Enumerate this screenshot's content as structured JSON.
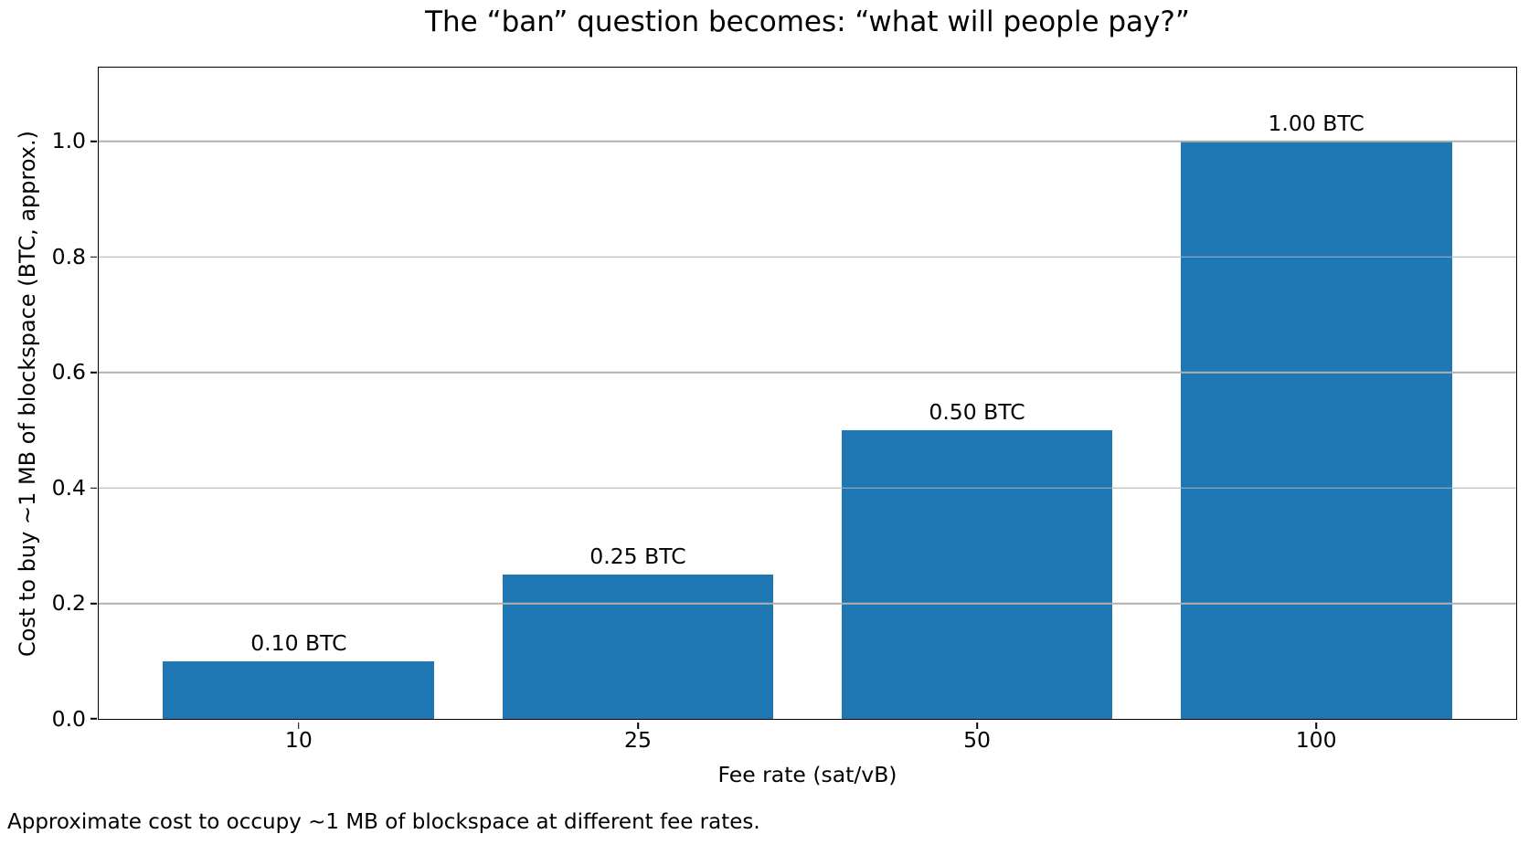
{
  "chart_data": {
    "type": "bar",
    "title": "The “ban” question becomes: “what will people pay?”",
    "categories": [
      "10",
      "25",
      "50",
      "100"
    ],
    "values": [
      0.1,
      0.25,
      0.5,
      1.0
    ],
    "bar_labels": [
      "0.10 BTC",
      "0.25 BTC",
      "0.50 BTC",
      "1.00 BTC"
    ],
    "xlabel": "Fee rate (sat/vB)",
    "ylabel": "Cost to buy ~1 MB of blockspace (BTC, approx.)",
    "caption": "Approximate cost to occupy ~1 MB of blockspace at different fee rates.",
    "yticks": [
      0,
      0.2,
      0.4,
      0.6,
      0.8,
      1.0
    ],
    "ytick_labels": [
      "0.0",
      "0.2",
      "0.4",
      "0.6",
      "0.8",
      "1.0"
    ],
    "ylim": [
      0,
      1.128
    ],
    "grid": "horizontal",
    "legend": "none",
    "colors": {
      "bar": "#1f77b4",
      "grid": "#b0b0b0",
      "axis": "#000000",
      "background": "#ffffff"
    }
  }
}
